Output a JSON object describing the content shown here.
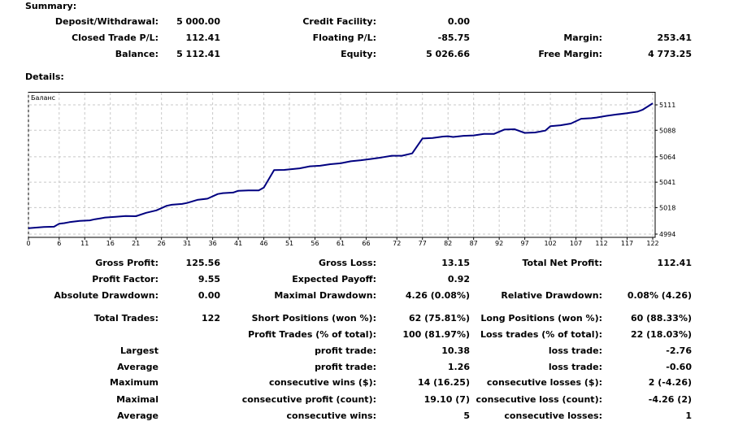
{
  "summary": {
    "title": "Summary:",
    "rows": [
      [
        {
          "label": "Deposit/Withdrawal:",
          "value": "5 000.00"
        },
        {
          "label": "Credit Facility:",
          "value": "0.00"
        },
        null
      ],
      [
        {
          "label": "Closed Trade P/L:",
          "value": "112.41"
        },
        {
          "label": "Floating P/L:",
          "value": "-85.75"
        },
        {
          "label": "Margin:",
          "value": "253.41"
        }
      ],
      [
        {
          "label": "Balance:",
          "value": "5 112.41"
        },
        {
          "label": "Equity:",
          "value": "5 026.66"
        },
        {
          "label": "Free Margin:",
          "value": "4 773.25"
        }
      ]
    ]
  },
  "details": {
    "title": "Details:",
    "rows": [
      [
        {
          "label": "Gross Profit:",
          "value": "125.56"
        },
        {
          "label": "Gross Loss:",
          "value": "13.15"
        },
        {
          "label": "Total Net Profit:",
          "value": "112.41"
        }
      ],
      [
        {
          "label": "Profit Factor:",
          "value": "9.55"
        },
        {
          "label": "Expected Payoff:",
          "value": "0.92"
        },
        null
      ],
      [
        {
          "label": "Absolute Drawdown:",
          "value": "0.00"
        },
        {
          "label": "Maximal Drawdown:",
          "value": "4.26 (0.08%)"
        },
        {
          "label": "Relative Drawdown:",
          "value": "0.08% (4.26)"
        }
      ],
      [
        {
          "label": "Total Trades:",
          "value": "122"
        },
        {
          "label": "Short Positions (won %):",
          "value": "62 (75.81%)"
        },
        {
          "label": "Long Positions (won %):",
          "value": "60 (88.33%)"
        }
      ],
      [
        null,
        {
          "label": "Profit Trades (% of total):",
          "value": "100 (81.97%)"
        },
        {
          "label": "Loss trades (% of total):",
          "value": "22 (18.03%)"
        }
      ],
      [
        {
          "label": "Largest",
          "value": ""
        },
        {
          "label": "profit trade:",
          "value": "10.38"
        },
        {
          "label": "loss trade:",
          "value": "-2.76"
        }
      ],
      [
        {
          "label": "Average",
          "value": ""
        },
        {
          "label": "profit trade:",
          "value": "1.26"
        },
        {
          "label": "loss trade:",
          "value": "-0.60"
        }
      ],
      [
        {
          "label": "Maximum",
          "value": ""
        },
        {
          "label": "consecutive wins ($):",
          "value": "14 (16.25)"
        },
        {
          "label": "consecutive losses ($):",
          "value": "2 (-4.26)"
        }
      ],
      [
        {
          "label": "Maximal",
          "value": ""
        },
        {
          "label": "consecutive profit (count):",
          "value": "19.10 (7)"
        },
        {
          "label": "consecutive loss (count):",
          "value": "-4.26 (2)"
        }
      ],
      [
        {
          "label": "Average",
          "value": ""
        },
        {
          "label": "consecutive wins:",
          "value": "5"
        },
        {
          "label": "consecutive losses:",
          "value": "1"
        }
      ]
    ]
  },
  "chart_data": {
    "type": "line",
    "series": [
      {
        "name": "Баланс",
        "color": "#000080",
        "x": [
          0,
          2,
          3,
          5,
          6,
          7,
          8,
          10,
          12,
          13,
          14,
          15,
          17,
          19,
          21,
          23,
          25,
          27,
          28,
          30,
          31,
          33,
          35,
          37,
          38,
          40,
          41,
          43,
          45,
          46,
          48,
          50,
          51,
          52,
          53,
          55,
          57,
          59,
          61,
          63,
          65,
          67,
          69,
          71,
          73,
          75,
          77,
          79,
          81,
          82,
          83,
          85,
          87,
          89,
          91,
          93,
          95,
          97,
          99,
          101,
          102,
          104,
          106,
          108,
          110,
          111,
          113,
          115,
          117,
          119,
          120,
          122
        ],
        "y": [
          4999.3,
          5000.0,
          5000.4,
          5000.7,
          5003.4,
          5003.9,
          5004.8,
          5005.9,
          5006.4,
          5007.5,
          5008.2,
          5009.0,
          5009.6,
          5010.3,
          5010.2,
          5013.3,
          5015.5,
          5019.6,
          5020.6,
          5021.3,
          5022.2,
          5025.0,
          5026.1,
          5030.3,
          5031.1,
          5031.6,
          5033.2,
          5033.5,
          5033.5,
          5036.2,
          5052.0,
          5052.1,
          5052.6,
          5053.1,
          5053.5,
          5055.4,
          5055.9,
          5057.3,
          5058.1,
          5059.9,
          5060.9,
          5062.1,
          5063.4,
          5064.9,
          5064.9,
          5067.1,
          5080.5,
          5081.0,
          5082.3,
          5082.6,
          5081.9,
          5083.0,
          5083.3,
          5084.7,
          5084.7,
          5088.6,
          5088.9,
          5085.6,
          5086.0,
          5087.7,
          5091.7,
          5092.5,
          5094.1,
          5098.4,
          5098.9,
          5099.5,
          5101.1,
          5102.3,
          5103.4,
          5104.8,
          5106.5,
          5112.4
        ]
      }
    ],
    "x_ticks": [
      "0",
      "6",
      "11",
      "16",
      "21",
      "26",
      "31",
      "36",
      "41",
      "46",
      "51",
      "56",
      "61",
      "66",
      "72",
      "77",
      "82",
      "87",
      "92",
      "97",
      "102",
      "107",
      "112",
      "117",
      "122"
    ],
    "x_tick_values": [
      0,
      6,
      11,
      16,
      21,
      26,
      31,
      36,
      41,
      46,
      51,
      56,
      61,
      66,
      72,
      77,
      82,
      87,
      92,
      97,
      102,
      107,
      112,
      117,
      122
    ],
    "y_ticks": [
      "5111",
      "5088",
      "5064",
      "5041",
      "5018",
      "4994"
    ],
    "y_tick_values": [
      5111,
      5088,
      5064,
      5041,
      5018,
      4994
    ],
    "xlim": [
      0,
      122
    ],
    "ylim": [
      4994,
      5111
    ],
    "grid": true,
    "legend": "top-left"
  }
}
